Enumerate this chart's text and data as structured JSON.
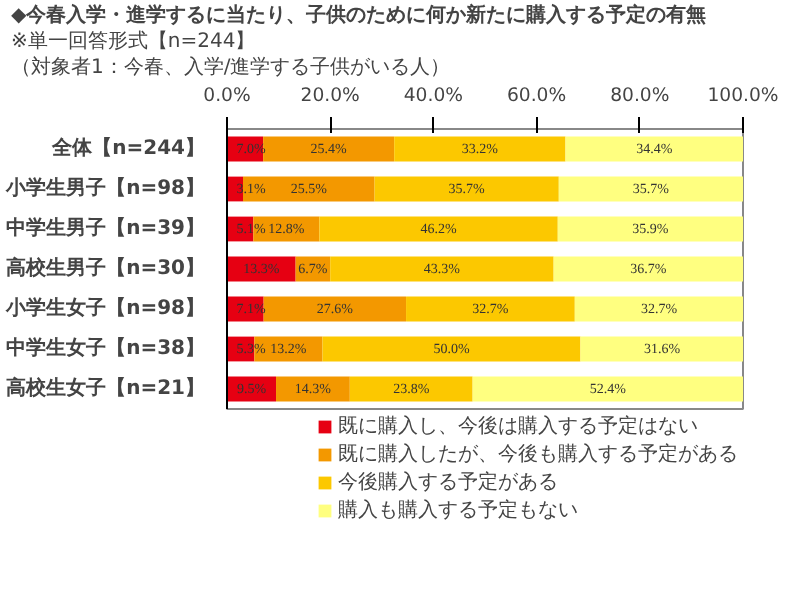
{
  "chart_data": {
    "type": "bar",
    "orientation": "horizontal",
    "stacked": true,
    "title": "◆今春入学・進学するに当たり、子供のために何か新たに購入する予定の有無",
    "subtitle": "※単一回答形式【n=244】",
    "annotations": [
      "（対象者1：今春、入学/進学する子供がいる人）"
    ],
    "categories": [
      "全体【n=244】",
      "小学生男子【n=98】",
      "中学生男子【n=39】",
      "高校生男子【n=30】",
      "小学生女子【n=98】",
      "中学生女子【n=38】",
      "高校生女子【n=21】"
    ],
    "series": [
      {
        "name": "既に購入し、今後は購入する予定はない",
        "color": "#e60012",
        "values": [
          7.0,
          3.1,
          5.1,
          13.3,
          7.1,
          5.3,
          9.5
        ],
        "value_labels": [
          "7.0%",
          "3.1%",
          "5.1%",
          "13.3%",
          "7.1%",
          "5.3%",
          "9.5%"
        ]
      },
      {
        "name": "既に購入したが、今後も購入する予定がある",
        "color": "#f39800",
        "values": [
          25.4,
          25.5,
          12.8,
          6.7,
          27.6,
          13.2,
          14.3
        ],
        "value_labels": [
          "25.4%",
          "25.5%",
          "12.8%",
          "6.7%",
          "27.6%",
          "13.2%",
          "14.3%"
        ]
      },
      {
        "name": "今後購入する予定がある",
        "color": "#fcc800",
        "values": [
          33.2,
          35.7,
          46.2,
          43.3,
          32.7,
          50.0,
          23.8
        ],
        "value_labels": [
          "33.2%",
          "35.7%",
          "46.2%",
          "43.3%",
          "32.7%",
          "50.0%",
          "23.8%"
        ]
      },
      {
        "name": "購入も購入する予定もない",
        "color": "#ffff80",
        "values": [
          34.4,
          35.7,
          35.9,
          36.7,
          32.7,
          31.6,
          52.4
        ],
        "value_labels": [
          "34.4%",
          "35.7%",
          "35.9%",
          "36.7%",
          "32.7%",
          "31.6%",
          "52.4%"
        ]
      }
    ],
    "xlim": [
      0,
      100
    ],
    "xticks": [
      {
        "value": 0,
        "label": "0.0%"
      },
      {
        "value": 20,
        "label": "20.0%"
      },
      {
        "value": 40,
        "label": "40.0%"
      },
      {
        "value": 60,
        "label": "60.0%"
      },
      {
        "value": 80,
        "label": "80.0%"
      },
      {
        "value": 100,
        "label": "100.0%"
      }
    ],
    "legend": "bottom"
  }
}
